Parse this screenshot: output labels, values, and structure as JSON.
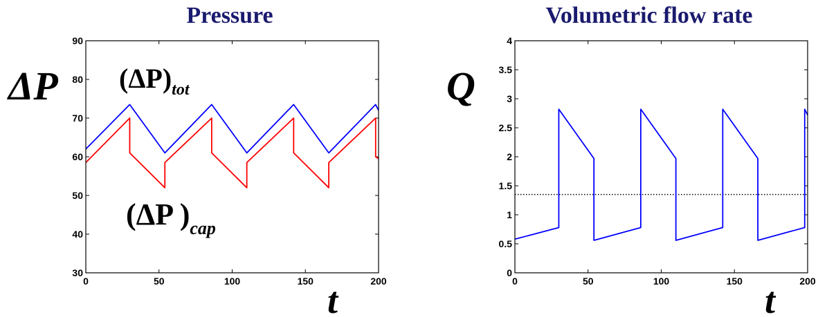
{
  "chart_data": [
    {
      "type": "line",
      "title": "Pressure",
      "ylabel": "ΔP",
      "xlabel": "t",
      "xlim": [
        0,
        200
      ],
      "ylim": [
        30,
        90
      ],
      "xticks": [
        "0",
        "50",
        "100",
        "150",
        "200"
      ],
      "yticks": [
        "30",
        "40",
        "50",
        "60",
        "70",
        "80",
        "90"
      ],
      "grid": false,
      "annotations": [
        {
          "base": "(ΔP)",
          "sub": "tot"
        },
        {
          "base": "(ΔP )",
          "sub": "cap"
        }
      ],
      "series": [
        {
          "color": "#0000ff",
          "x": [
            0,
            30,
            54,
            86,
            110,
            142,
            166,
            198,
            200
          ],
          "y": [
            62,
            73.5,
            61,
            73.5,
            61,
            73.5,
            61,
            73.5,
            72
          ]
        },
        {
          "color": "#ff0000",
          "x": [
            0,
            30,
            30,
            54,
            54,
            86,
            86,
            110,
            110,
            142,
            142,
            166,
            166,
            198,
            198,
            200
          ],
          "y": [
            58.5,
            70,
            61,
            52,
            58.5,
            70,
            61,
            52,
            58.5,
            70,
            61,
            52,
            58.5,
            70,
            60,
            59.5
          ]
        }
      ]
    },
    {
      "type": "line",
      "title": "Volumetric flow rate",
      "ylabel": "Q",
      "xlabel": "t",
      "xlim": [
        0,
        200
      ],
      "ylim": [
        0,
        4
      ],
      "xticks": [
        "0",
        "50",
        "100",
        "150",
        "200"
      ],
      "yticks": [
        "0",
        "0.5",
        "1",
        "1.5",
        "2",
        "2.5",
        "3",
        "3.5",
        "4"
      ],
      "grid": false,
      "reference_line": {
        "y": 1.35,
        "style": "dotted",
        "color": "#000000"
      },
      "series": [
        {
          "color": "#0000ff",
          "x": [
            0,
            30,
            30,
            54,
            54,
            86,
            86,
            110,
            110,
            142,
            142,
            166,
            166,
            198,
            198,
            200
          ],
          "y": [
            0.58,
            0.78,
            2.82,
            1.97,
            0.56,
            0.78,
            2.82,
            1.97,
            0.56,
            0.78,
            2.82,
            1.97,
            0.56,
            0.78,
            2.82,
            2.72
          ]
        }
      ]
    }
  ]
}
